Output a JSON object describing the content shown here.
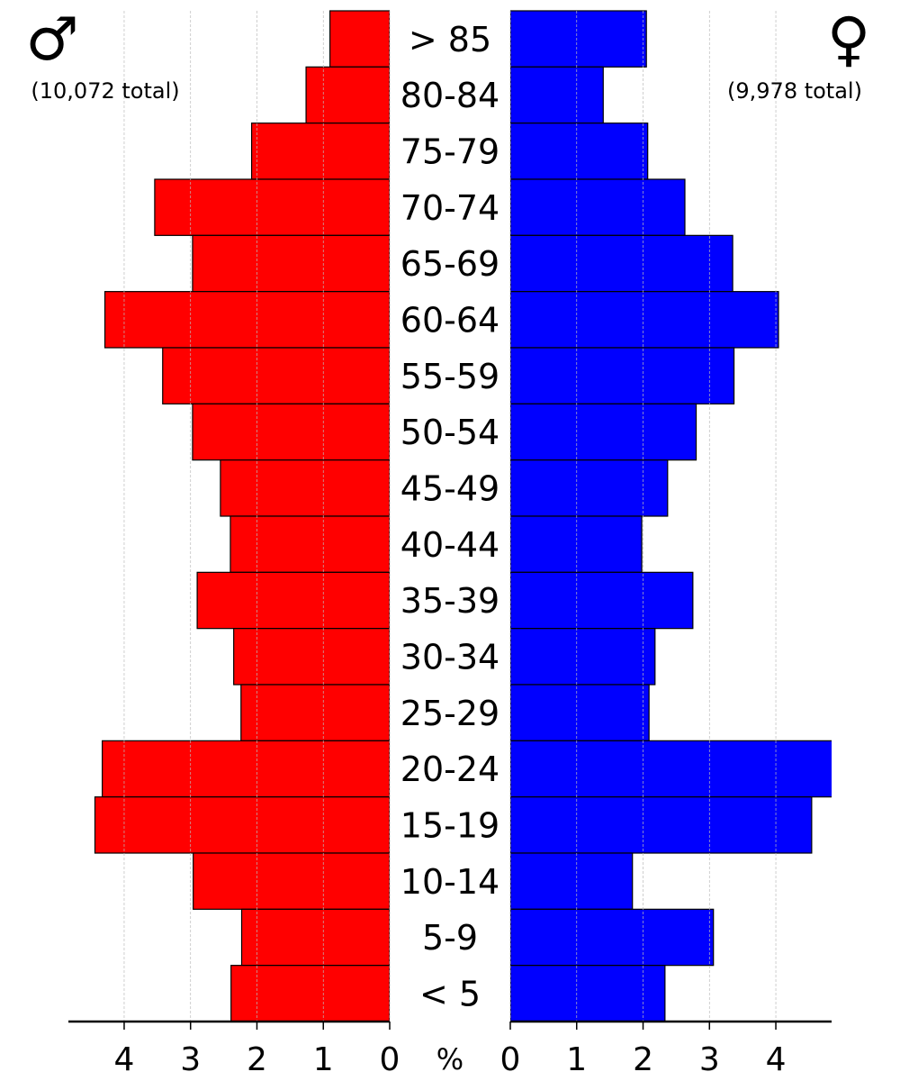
{
  "chart_data": {
    "type": "pyramid",
    "categories": [
      "> 85",
      "80-84",
      "75-79",
      "70-74",
      "65-69",
      "60-64",
      "55-59",
      "50-54",
      "45-49",
      "40-44",
      "35-39",
      "30-34",
      "25-29",
      "20-24",
      "15-19",
      "10-14",
      "5-9",
      "< 5"
    ],
    "series": [
      {
        "name": "♂",
        "total_label": "(10,072 total)",
        "color": "#ff0000",
        "values": [
          0.9,
          1.26,
          2.08,
          3.54,
          2.97,
          4.29,
          3.42,
          2.97,
          2.55,
          2.4,
          2.9,
          2.35,
          2.24,
          4.33,
          4.44,
          2.96,
          2.23,
          2.39
        ]
      },
      {
        "name": "♀",
        "total_label": "(9,978 total)",
        "color": "#0000ff",
        "values": [
          2.05,
          1.4,
          2.07,
          2.63,
          3.35,
          4.04,
          3.37,
          2.8,
          2.37,
          1.98,
          2.75,
          2.18,
          2.09,
          4.9,
          4.54,
          1.84,
          3.06,
          2.33
        ]
      }
    ],
    "x_label": "%",
    "xlim": [
      0,
      4.84
    ],
    "xticks": [
      0,
      1,
      2,
      3,
      4
    ],
    "grid": true
  }
}
